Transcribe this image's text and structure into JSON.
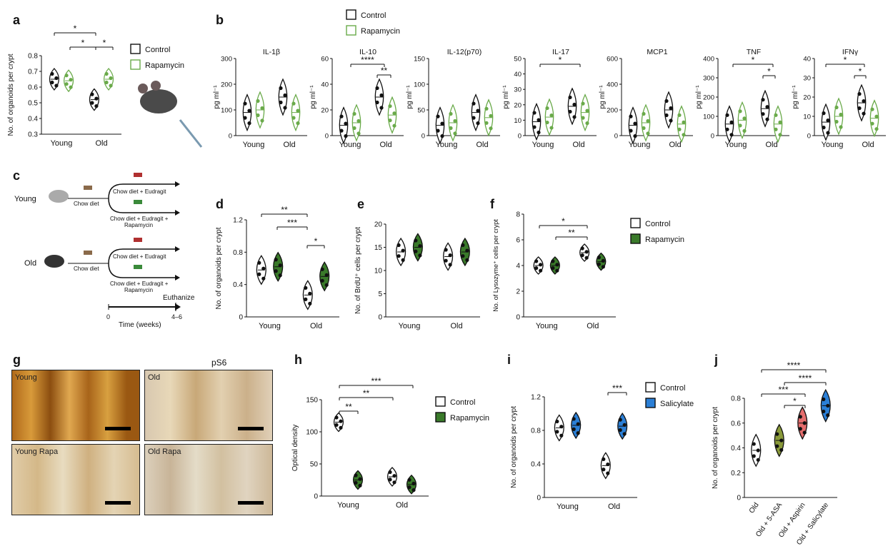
{
  "colors": {
    "control": "#000000",
    "rapa": "#3a7a2a",
    "rapa_light": "#6aaa4a",
    "salicylate": "#2b7fd6",
    "aspirin": "#e56d6d",
    "asa": "#8a9a3a"
  },
  "panel_letters": [
    "a",
    "b",
    "c",
    "d",
    "e",
    "f",
    "g",
    "h",
    "i",
    "j"
  ],
  "legends": {
    "a": [
      "Control",
      "Rapamycin"
    ],
    "b": [
      "Control",
      "Rapamycin"
    ],
    "f": [
      "Control",
      "Rapamycin"
    ],
    "h": [
      "Control",
      "Rapamycin"
    ],
    "i": [
      "Control",
      "Salicylate"
    ]
  },
  "panel_c": {
    "young_label": "Young",
    "old_label": "Old",
    "chow": "Chow diet",
    "arm1": "Chow diet + Eudragit",
    "arm2a": "Chow diet + Eudragit +",
    "arm2b": "Rapamycin",
    "euthanize": "Euthanize",
    "t0": "0",
    "t1": "4–6",
    "xlabel": "Time (weeks)"
  },
  "panel_g": {
    "title": "pS6",
    "images": [
      "Young",
      "Old",
      "Young Rapa",
      "Old Rapa"
    ]
  },
  "chart_data": [
    {
      "id": "a",
      "type": "violin",
      "ylabel": "No. of organoids per crypt",
      "ylim": [
        0.3,
        0.8
      ],
      "yticks": [
        "0.3",
        "0.4",
        "0.5",
        "0.6",
        "0.7",
        "0.8"
      ],
      "categories": [
        "Young",
        "Old"
      ],
      "series": [
        {
          "name": "Control",
          "values": [
            0.65,
            0.52
          ]
        },
        {
          "name": "Rapamycin",
          "values": [
            0.64,
            0.65
          ]
        }
      ],
      "annotations": [
        "*",
        "*",
        "*"
      ]
    },
    {
      "id": "b1",
      "type": "violin",
      "title": "IL-1β",
      "ylabel": "pg ml⁻¹",
      "ylim": [
        0,
        300
      ],
      "yticks": [
        "0",
        "100",
        "200",
        "300"
      ],
      "categories": [
        "Young",
        "Old"
      ],
      "series": [
        {
          "name": "Control",
          "values": [
            90,
            150
          ]
        },
        {
          "name": "Rapamycin",
          "values": [
            100,
            90
          ]
        }
      ],
      "annotations": []
    },
    {
      "id": "b2",
      "type": "violin",
      "title": "IL-10",
      "ylabel": "pg ml⁻¹",
      "ylim": [
        0,
        60
      ],
      "yticks": [
        "0",
        "20",
        "40",
        "60"
      ],
      "categories": [
        "Young",
        "Old"
      ],
      "series": [
        {
          "name": "Control",
          "values": [
            8,
            30
          ]
        },
        {
          "name": "Rapamycin",
          "values": [
            10,
            16
          ]
        }
      ],
      "annotations": [
        "****",
        "**"
      ]
    },
    {
      "id": "b3",
      "type": "violin",
      "title": "IL-12(p70)",
      "ylabel": "pg ml⁻¹",
      "ylim": [
        0,
        150
      ],
      "yticks": [
        "0",
        "50",
        "100",
        "150"
      ],
      "categories": [
        "Young",
        "Old"
      ],
      "series": [
        {
          "name": "Control",
          "values": [
            20,
            45
          ]
        },
        {
          "name": "Rapamycin",
          "values": [
            25,
            35
          ]
        }
      ],
      "annotations": []
    },
    {
      "id": "b4",
      "type": "violin",
      "title": "IL-17",
      "ylabel": "pg ml⁻¹",
      "ylim": [
        0,
        50
      ],
      "yticks": [
        "0",
        "10",
        "20",
        "30",
        "40",
        "50"
      ],
      "categories": [
        "Young",
        "Old"
      ],
      "series": [
        {
          "name": "Control",
          "values": [
            9,
            19
          ]
        },
        {
          "name": "Rapamycin",
          "values": [
            12,
            15
          ]
        }
      ],
      "annotations": [
        "*"
      ]
    },
    {
      "id": "b5",
      "type": "violin",
      "title": "MCP1",
      "ylabel": "pg ml⁻¹",
      "ylim": [
        0,
        600
      ],
      "yticks": [
        "0",
        "200",
        "400",
        "600"
      ],
      "categories": [
        "Young",
        "Old"
      ],
      "series": [
        {
          "name": "Control",
          "values": [
            80,
            200
          ]
        },
        {
          "name": "Rapamycin",
          "values": [
            100,
            90
          ]
        }
      ],
      "annotations": []
    },
    {
      "id": "b6",
      "type": "violin",
      "title": "TNF",
      "ylabel": "pg ml⁻¹",
      "ylim": [
        0,
        400
      ],
      "yticks": [
        "0",
        "100",
        "200",
        "300",
        "400"
      ],
      "categories": [
        "Young",
        "Old"
      ],
      "series": [
        {
          "name": "Control",
          "values": [
            60,
            140
          ]
        },
        {
          "name": "Rapamycin",
          "values": [
            80,
            60
          ]
        }
      ],
      "annotations": [
        "*",
        "*"
      ]
    },
    {
      "id": "b7",
      "type": "violin",
      "title": "IFNγ",
      "ylabel": "pg ml⁻¹",
      "ylim": [
        0,
        40
      ],
      "yticks": [
        "0",
        "10",
        "20",
        "30",
        "40"
      ],
      "categories": [
        "Young",
        "Old"
      ],
      "series": [
        {
          "name": "Control",
          "values": [
            7,
            17
          ]
        },
        {
          "name": "Rapamycin",
          "values": [
            10,
            9
          ]
        }
      ],
      "annotations": [
        "*",
        "*"
      ]
    },
    {
      "id": "d",
      "type": "violin",
      "ylabel": "No. of organoids per crypt",
      "ylim": [
        0,
        1.2
      ],
      "yticks": [
        "0",
        "0.4",
        "0.8",
        "1.2"
      ],
      "categories": [
        "Young",
        "Old"
      ],
      "series": [
        {
          "name": "Control",
          "values": [
            0.58,
            0.27
          ]
        },
        {
          "name": "Rapamycin",
          "values": [
            0.62,
            0.5
          ]
        }
      ],
      "annotations": [
        "**",
        "***",
        "*"
      ]
    },
    {
      "id": "e",
      "type": "violin",
      "ylabel": "No. of BrdU⁺ cells per crypt",
      "ylim": [
        0,
        20
      ],
      "yticks": [
        "0",
        "5",
        "10",
        "15",
        "20"
      ],
      "categories": [
        "Young",
        "Old"
      ],
      "series": [
        {
          "name": "Control",
          "values": [
            14,
            13
          ]
        },
        {
          "name": "Rapamycin",
          "values": [
            15,
            14
          ]
        }
      ],
      "annotations": []
    },
    {
      "id": "f",
      "type": "violin",
      "ylabel": "No. of Lysozyme⁺ cells per crypt",
      "ylim": [
        0,
        8
      ],
      "yticks": [
        "0",
        "2",
        "4",
        "6",
        "8"
      ],
      "categories": [
        "Young",
        "Old"
      ],
      "series": [
        {
          "name": "Control",
          "values": [
            4,
            5
          ]
        },
        {
          "name": "Rapamycin",
          "values": [
            4,
            4.3
          ]
        }
      ],
      "annotations": [
        "*",
        "**"
      ]
    },
    {
      "id": "h",
      "type": "violin",
      "ylabel": "Optical density",
      "ylim": [
        0,
        150
      ],
      "yticks": [
        "0",
        "50",
        "100",
        "150"
      ],
      "categories": [
        "Young",
        "Old"
      ],
      "series": [
        {
          "name": "Control",
          "values": [
            115,
            30
          ]
        },
        {
          "name": "Rapamycin",
          "values": [
            25,
            18
          ]
        }
      ],
      "annotations": [
        "***",
        "**",
        "**"
      ]
    },
    {
      "id": "i",
      "type": "violin",
      "ylabel": "No. of organoids per crypt",
      "ylim": [
        0,
        1.2
      ],
      "yticks": [
        "0",
        "0.4",
        "0.8",
        "1.2"
      ],
      "categories": [
        "Young",
        "Old"
      ],
      "series": [
        {
          "name": "Control",
          "values": [
            0.83,
            0.38
          ]
        },
        {
          "name": "Salicylate",
          "values": [
            0.86,
            0.85
          ]
        }
      ],
      "annotations": [
        "***"
      ]
    },
    {
      "id": "j",
      "type": "violin",
      "ylabel": "No. of organoids per crypt",
      "ylim": [
        0,
        0.8
      ],
      "yticks": [
        "0",
        "0.2",
        "0.4",
        "0.6",
        "0.8"
      ],
      "categories": [
        "Old",
        "Old + 5-ASA",
        "Old + Aspirin",
        "Old + Salicylate"
      ],
      "values": [
        0.38,
        0.46,
        0.6,
        0.74
      ],
      "annotations": [
        "****",
        "****",
        "***",
        "*"
      ]
    }
  ]
}
